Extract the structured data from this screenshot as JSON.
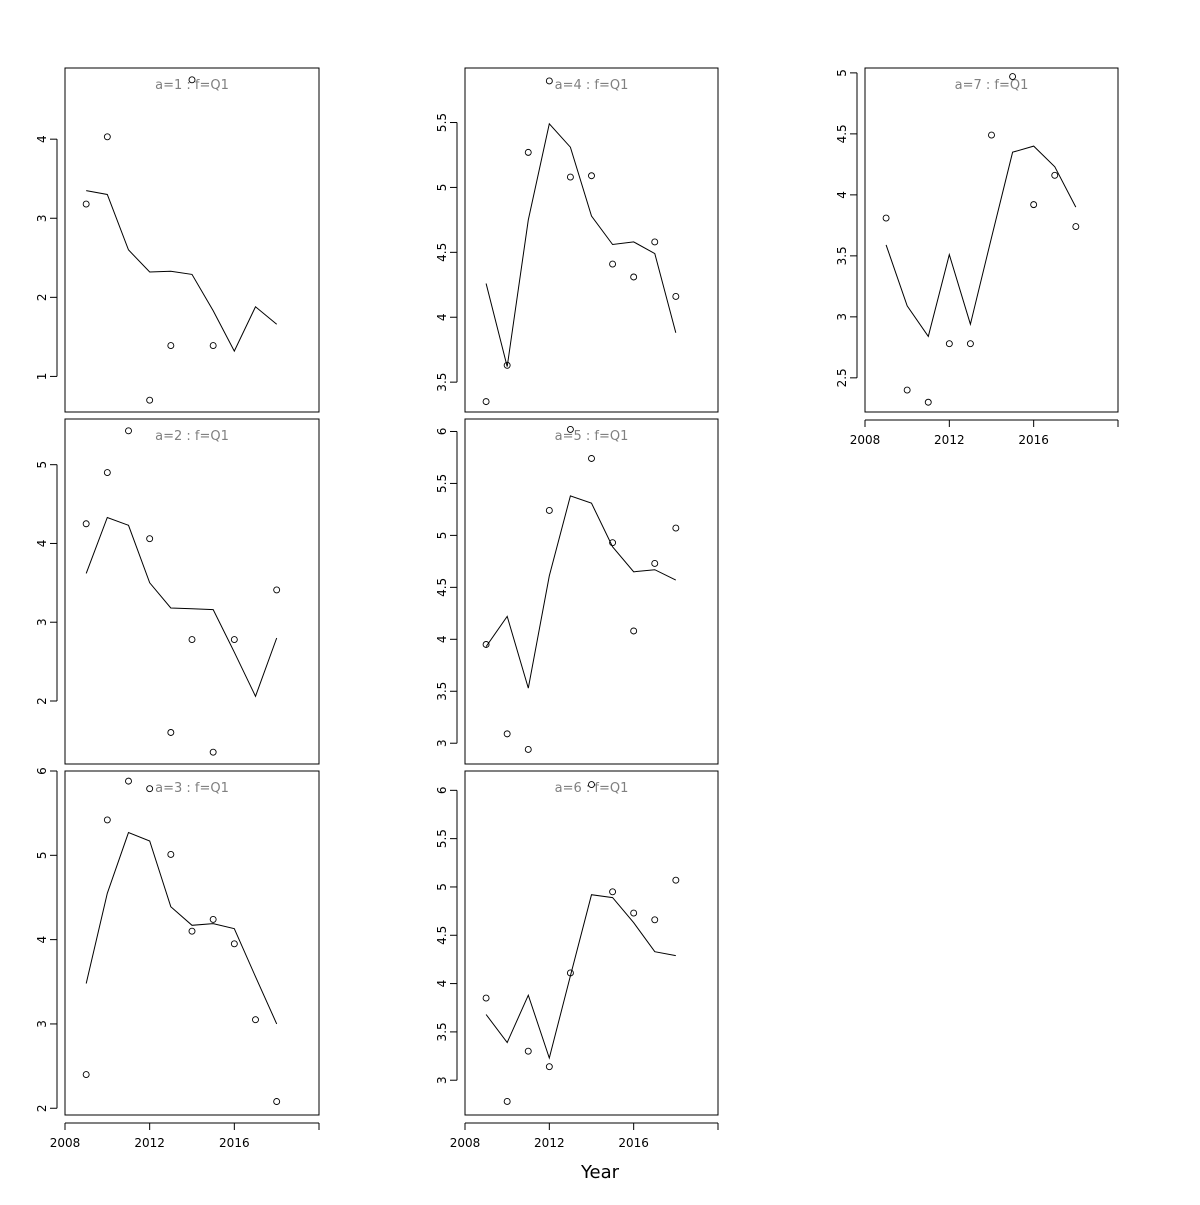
{
  "figure": {
    "xlabel": "Year"
  },
  "chart_data": [
    {
      "type": "scatter",
      "title": "a=1 : f=Q1",
      "x": [
        2009,
        2010,
        2011,
        2012,
        2013,
        2014,
        2015,
        2016,
        2017,
        2018
      ],
      "series": [
        {
          "kind": "points",
          "values": [
            3.18,
            4.03,
            null,
            0.7,
            1.39,
            4.75,
            1.39,
            null,
            null,
            null
          ]
        },
        {
          "kind": "line",
          "values": [
            3.35,
            3.3,
            2.6,
            2.32,
            2.33,
            2.29,
            1.83,
            1.32,
            1.88,
            1.66
          ]
        }
      ],
      "xlim": [
        2008,
        2020
      ],
      "ylim": [
        0.55,
        4.9
      ],
      "yticks": [
        1,
        2,
        3,
        4
      ],
      "xticks": [],
      "grid": false
    },
    {
      "type": "scatter",
      "title": "a=2 : f=Q1",
      "x": [
        2009,
        2010,
        2011,
        2012,
        2013,
        2014,
        2015,
        2016,
        2017,
        2018
      ],
      "series": [
        {
          "kind": "points",
          "values": [
            4.25,
            4.9,
            5.43,
            4.06,
            1.6,
            2.78,
            1.35,
            2.78,
            null,
            3.41
          ]
        },
        {
          "kind": "line",
          "values": [
            3.62,
            4.33,
            4.23,
            3.5,
            3.18,
            3.17,
            3.16,
            2.62,
            2.06,
            2.8
          ]
        }
      ],
      "xlim": [
        2008,
        2020
      ],
      "ylim": [
        1.2,
        5.58
      ],
      "yticks": [
        2,
        3,
        4,
        5
      ],
      "xticks": [],
      "grid": false
    },
    {
      "type": "scatter",
      "title": "a=3 : f=Q1",
      "x": [
        2009,
        2010,
        2011,
        2012,
        2013,
        2014,
        2015,
        2016,
        2017,
        2018
      ],
      "series": [
        {
          "kind": "points",
          "values": [
            2.4,
            5.42,
            5.88,
            5.79,
            5.01,
            4.1,
            4.24,
            3.95,
            3.05,
            2.08
          ]
        },
        {
          "kind": "line",
          "values": [
            3.48,
            4.55,
            5.27,
            5.17,
            4.39,
            4.17,
            4.19,
            4.13,
            3.56,
            3.0
          ]
        }
      ],
      "xlim": [
        2008,
        2020
      ],
      "ylim": [
        1.92,
        6.0
      ],
      "yticks": [
        2,
        3,
        4,
        5,
        6
      ],
      "xticks": [
        2008,
        2012,
        2016
      ],
      "grid": false
    },
    {
      "type": "scatter",
      "title": "a=4 : f=Q1",
      "x": [
        2009,
        2010,
        2011,
        2012,
        2013,
        2014,
        2015,
        2016,
        2017,
        2018
      ],
      "series": [
        {
          "kind": "points",
          "values": [
            3.35,
            3.63,
            5.27,
            5.82,
            5.08,
            5.09,
            4.41,
            4.31,
            4.58,
            4.16
          ]
        },
        {
          "kind": "line",
          "values": [
            4.26,
            3.62,
            4.75,
            5.49,
            5.31,
            4.78,
            4.56,
            4.58,
            4.49,
            3.88
          ]
        }
      ],
      "xlim": [
        2008,
        2020
      ],
      "ylim": [
        3.27,
        5.92
      ],
      "yticks": [
        3.5,
        4.0,
        4.5,
        5.0,
        5.5
      ],
      "xticks": [],
      "grid": false
    },
    {
      "type": "scatter",
      "title": "a=5 : f=Q1",
      "x": [
        2009,
        2010,
        2011,
        2012,
        2013,
        2014,
        2015,
        2016,
        2017,
        2018
      ],
      "series": [
        {
          "kind": "points",
          "values": [
            3.95,
            3.09,
            2.94,
            5.24,
            6.02,
            5.74,
            4.93,
            4.08,
            4.73,
            5.07
          ]
        },
        {
          "kind": "line",
          "values": [
            3.93,
            4.22,
            3.53,
            4.61,
            5.38,
            5.31,
            4.89,
            4.65,
            4.67,
            4.57
          ]
        }
      ],
      "xlim": [
        2008,
        2020
      ],
      "ylim": [
        2.8,
        6.12
      ],
      "yticks": [
        3.0,
        3.5,
        4.0,
        4.5,
        5.0,
        5.5,
        6.0
      ],
      "xticks": [],
      "grid": false
    },
    {
      "type": "scatter",
      "title": "a=6 : f=Q1",
      "x": [
        2009,
        2010,
        2011,
        2012,
        2013,
        2014,
        2015,
        2016,
        2017,
        2018
      ],
      "series": [
        {
          "kind": "points",
          "values": [
            3.85,
            2.78,
            3.3,
            3.14,
            4.11,
            6.06,
            4.95,
            4.73,
            4.66,
            5.07
          ]
        },
        {
          "kind": "line",
          "values": [
            3.68,
            3.39,
            3.88,
            3.23,
            4.08,
            4.92,
            4.89,
            4.63,
            4.33,
            4.29
          ]
        }
      ],
      "xlim": [
        2008,
        2020
      ],
      "ylim": [
        2.64,
        6.2
      ],
      "yticks": [
        3.0,
        3.5,
        4.0,
        4.5,
        5.0,
        5.5,
        6.0
      ],
      "xticks": [
        2008,
        2012,
        2016
      ],
      "grid": false
    },
    {
      "type": "scatter",
      "title": "a=7 : f=Q1",
      "x": [
        2009,
        2010,
        2011,
        2012,
        2013,
        2014,
        2015,
        2016,
        2017,
        2018
      ],
      "series": [
        {
          "kind": "points",
          "values": [
            3.81,
            2.4,
            2.3,
            2.78,
            2.78,
            4.49,
            4.97,
            3.92,
            4.16,
            3.74
          ]
        },
        {
          "kind": "line",
          "values": [
            3.59,
            3.09,
            2.84,
            3.51,
            2.94,
            3.65,
            4.35,
            4.4,
            4.23,
            3.9
          ]
        }
      ],
      "xlim": [
        2008,
        2020
      ],
      "ylim": [
        2.22,
        5.04
      ],
      "yticks": [
        2.5,
        3.0,
        3.5,
        4.0,
        4.5,
        5.0
      ],
      "xticks": [
        2008,
        2012,
        2016
      ],
      "grid": false
    }
  ]
}
